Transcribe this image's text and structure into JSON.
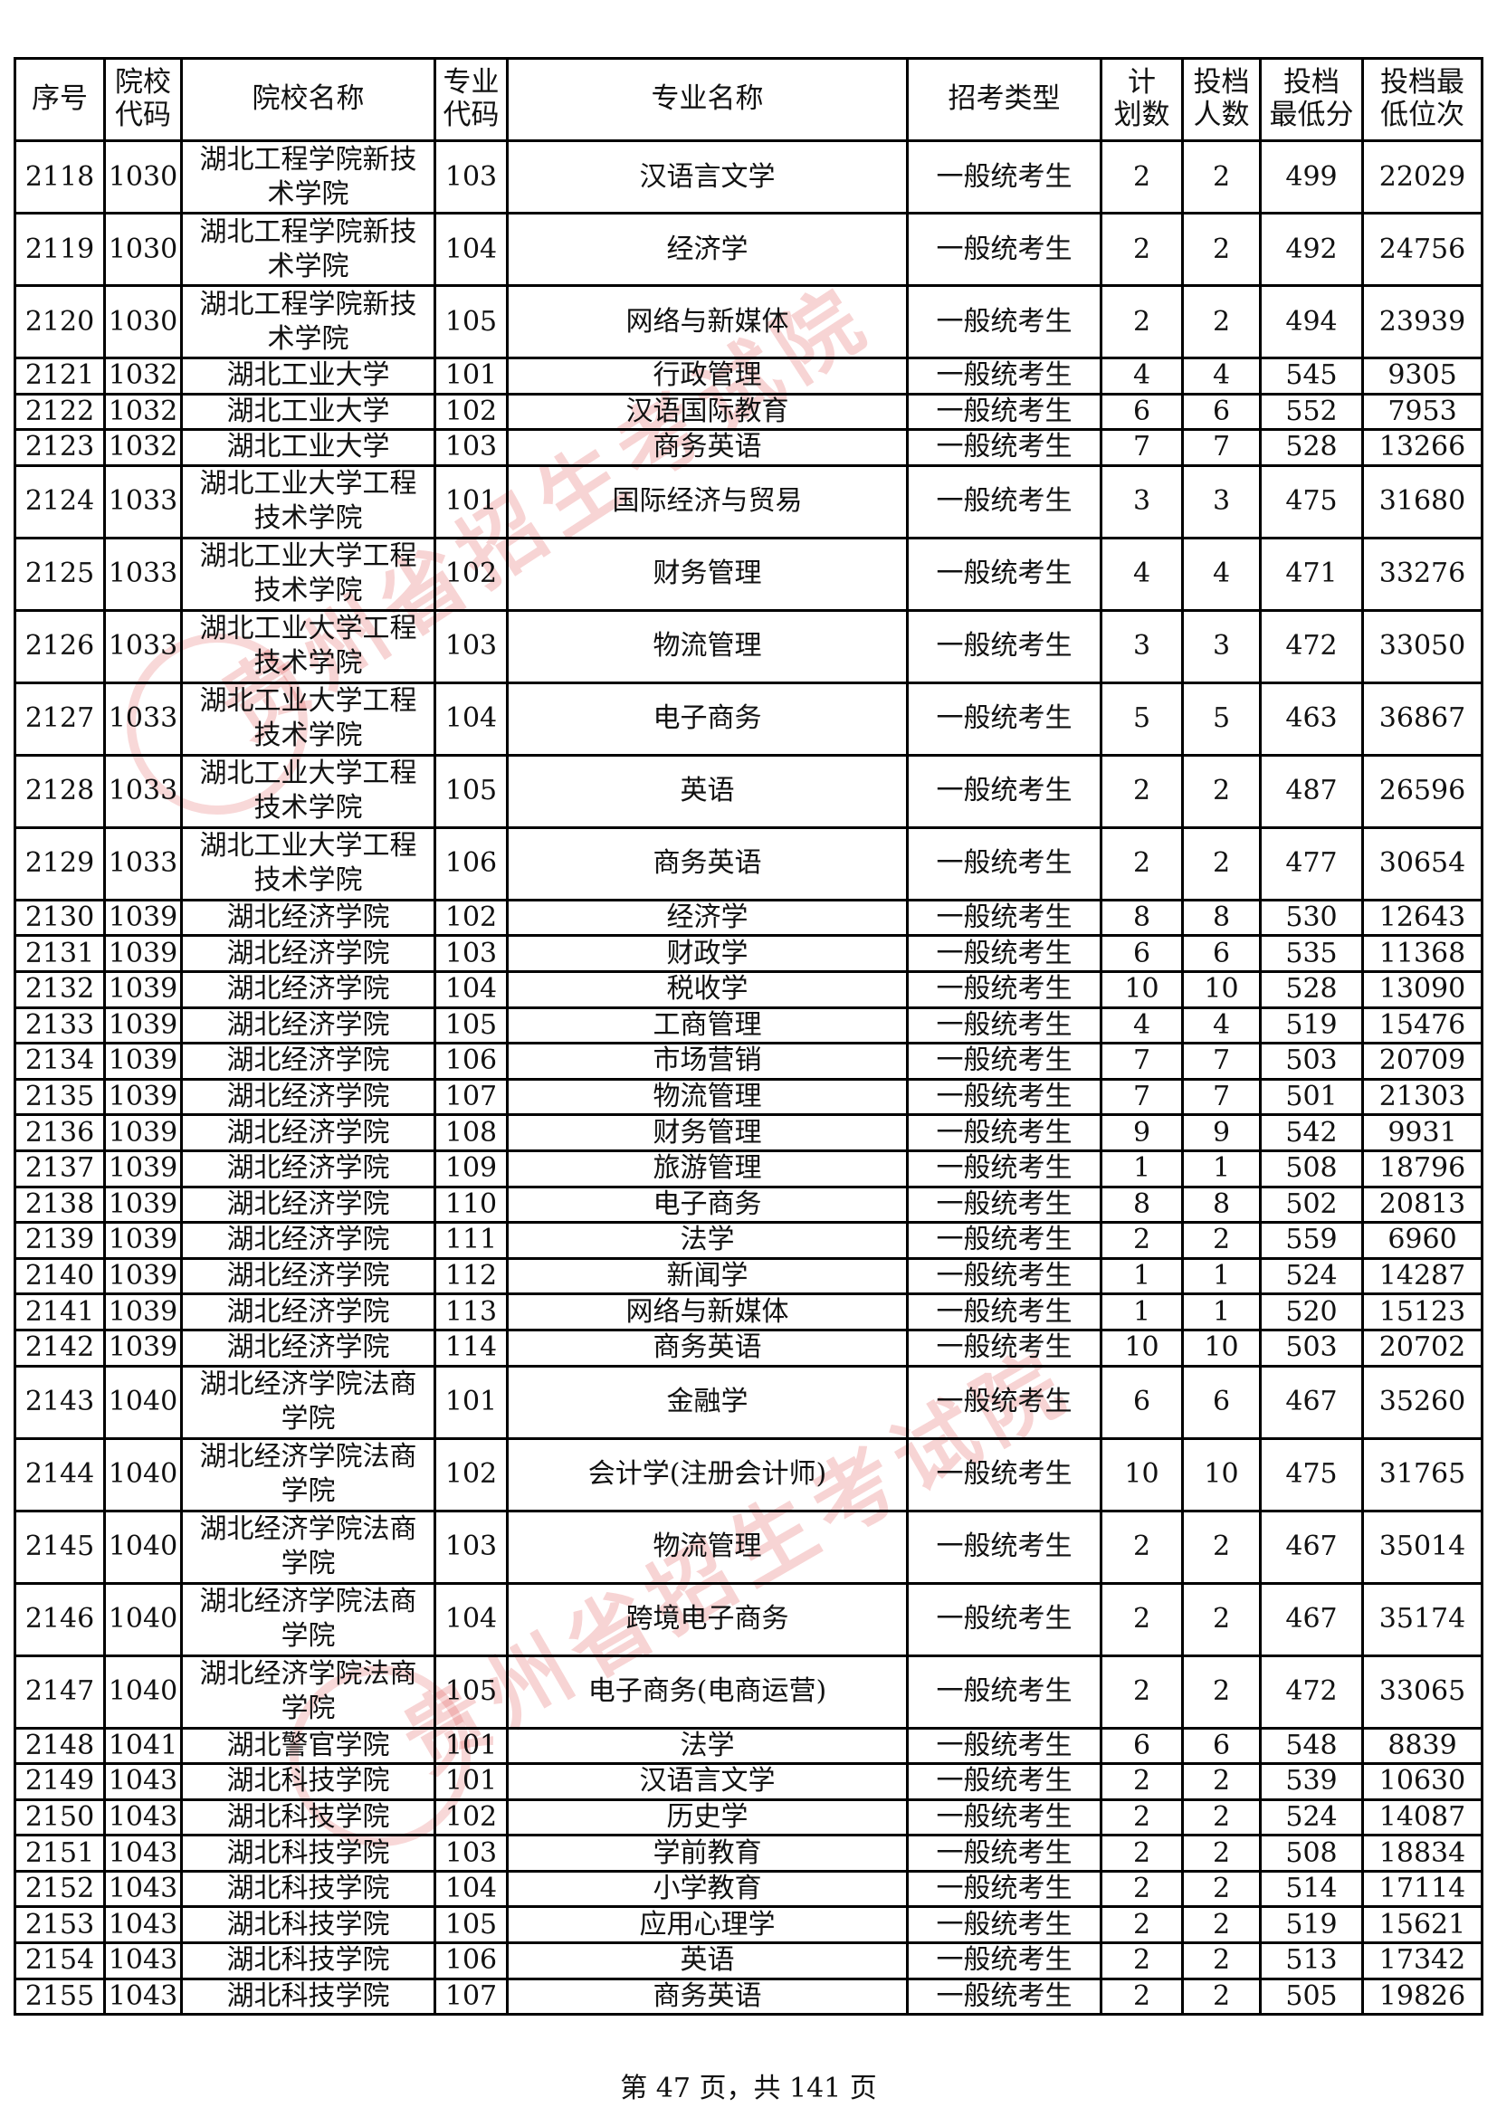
{
  "header": [
    "序号",
    "院校\n代码",
    "院校名称",
    "专业\n代码",
    "专业名称",
    "招考类型",
    "计\n划数",
    "投档\n人数",
    "投档\n最低分",
    "投档最\n低位次"
  ],
  "rows": [
    [
      "2118",
      "1030",
      "湖北工程学院新技术学院",
      "103",
      "汉语言文学",
      "一般统考生",
      "2",
      "2",
      "499",
      "22029"
    ],
    [
      "2119",
      "1030",
      "湖北工程学院新技术学院",
      "104",
      "经济学",
      "一般统考生",
      "2",
      "2",
      "492",
      "24756"
    ],
    [
      "2120",
      "1030",
      "湖北工程学院新技术学院",
      "105",
      "网络与新媒体",
      "一般统考生",
      "2",
      "2",
      "494",
      "23939"
    ],
    [
      "2121",
      "1032",
      "湖北工业大学",
      "101",
      "行政管理",
      "一般统考生",
      "4",
      "4",
      "545",
      "9305"
    ],
    [
      "2122",
      "1032",
      "湖北工业大学",
      "102",
      "汉语国际教育",
      "一般统考生",
      "6",
      "6",
      "552",
      "7953"
    ],
    [
      "2123",
      "1032",
      "湖北工业大学",
      "103",
      "商务英语",
      "一般统考生",
      "7",
      "7",
      "528",
      "13266"
    ],
    [
      "2124",
      "1033",
      "湖北工业大学工程技术学院",
      "101",
      "国际经济与贸易",
      "一般统考生",
      "3",
      "3",
      "475",
      "31680"
    ],
    [
      "2125",
      "1033",
      "湖北工业大学工程技术学院",
      "102",
      "财务管理",
      "一般统考生",
      "4",
      "4",
      "471",
      "33276"
    ],
    [
      "2126",
      "1033",
      "湖北工业大学工程技术学院",
      "103",
      "物流管理",
      "一般统考生",
      "3",
      "3",
      "472",
      "33050"
    ],
    [
      "2127",
      "1033",
      "湖北工业大学工程技术学院",
      "104",
      "电子商务",
      "一般统考生",
      "5",
      "5",
      "463",
      "36867"
    ],
    [
      "2128",
      "1033",
      "湖北工业大学工程技术学院",
      "105",
      "英语",
      "一般统考生",
      "2",
      "2",
      "487",
      "26596"
    ],
    [
      "2129",
      "1033",
      "湖北工业大学工程技术学院",
      "106",
      "商务英语",
      "一般统考生",
      "2",
      "2",
      "477",
      "30654"
    ],
    [
      "2130",
      "1039",
      "湖北经济学院",
      "102",
      "经济学",
      "一般统考生",
      "8",
      "8",
      "530",
      "12643"
    ],
    [
      "2131",
      "1039",
      "湖北经济学院",
      "103",
      "财政学",
      "一般统考生",
      "6",
      "6",
      "535",
      "11368"
    ],
    [
      "2132",
      "1039",
      "湖北经济学院",
      "104",
      "税收学",
      "一般统考生",
      "10",
      "10",
      "528",
      "13090"
    ],
    [
      "2133",
      "1039",
      "湖北经济学院",
      "105",
      "工商管理",
      "一般统考生",
      "4",
      "4",
      "519",
      "15476"
    ],
    [
      "2134",
      "1039",
      "湖北经济学院",
      "106",
      "市场营销",
      "一般统考生",
      "7",
      "7",
      "503",
      "20709"
    ],
    [
      "2135",
      "1039",
      "湖北经济学院",
      "107",
      "物流管理",
      "一般统考生",
      "7",
      "7",
      "501",
      "21303"
    ],
    [
      "2136",
      "1039",
      "湖北经济学院",
      "108",
      "财务管理",
      "一般统考生",
      "9",
      "9",
      "542",
      "9931"
    ],
    [
      "2137",
      "1039",
      "湖北经济学院",
      "109",
      "旅游管理",
      "一般统考生",
      "1",
      "1",
      "508",
      "18796"
    ],
    [
      "2138",
      "1039",
      "湖北经济学院",
      "110",
      "电子商务",
      "一般统考生",
      "8",
      "8",
      "502",
      "20813"
    ],
    [
      "2139",
      "1039",
      "湖北经济学院",
      "111",
      "法学",
      "一般统考生",
      "2",
      "2",
      "559",
      "6960"
    ],
    [
      "2140",
      "1039",
      "湖北经济学院",
      "112",
      "新闻学",
      "一般统考生",
      "1",
      "1",
      "524",
      "14287"
    ],
    [
      "2141",
      "1039",
      "湖北经济学院",
      "113",
      "网络与新媒体",
      "一般统考生",
      "1",
      "1",
      "520",
      "15123"
    ],
    [
      "2142",
      "1039",
      "湖北经济学院",
      "114",
      "商务英语",
      "一般统考生",
      "10",
      "10",
      "503",
      "20702"
    ],
    [
      "2143",
      "1040",
      "湖北经济学院法商学院",
      "101",
      "金融学",
      "一般统考生",
      "6",
      "6",
      "467",
      "35260"
    ],
    [
      "2144",
      "1040",
      "湖北经济学院法商学院",
      "102",
      "会计学(注册会计师)",
      "一般统考生",
      "10",
      "10",
      "475",
      "31765"
    ],
    [
      "2145",
      "1040",
      "湖北经济学院法商学院",
      "103",
      "物流管理",
      "一般统考生",
      "2",
      "2",
      "467",
      "35014"
    ],
    [
      "2146",
      "1040",
      "湖北经济学院法商学院",
      "104",
      "跨境电子商务",
      "一般统考生",
      "2",
      "2",
      "467",
      "35174"
    ],
    [
      "2147",
      "1040",
      "湖北经济学院法商学院",
      "105",
      "电子商务(电商运营)",
      "一般统考生",
      "2",
      "2",
      "472",
      "33065"
    ],
    [
      "2148",
      "1041",
      "湖北警官学院",
      "101",
      "法学",
      "一般统考生",
      "6",
      "6",
      "548",
      "8839"
    ],
    [
      "2149",
      "1043",
      "湖北科技学院",
      "101",
      "汉语言文学",
      "一般统考生",
      "2",
      "2",
      "539",
      "10630"
    ],
    [
      "2150",
      "1043",
      "湖北科技学院",
      "102",
      "历史学",
      "一般统考生",
      "2",
      "2",
      "524",
      "14087"
    ],
    [
      "2151",
      "1043",
      "湖北科技学院",
      "103",
      "学前教育",
      "一般统考生",
      "2",
      "2",
      "508",
      "18834"
    ],
    [
      "2152",
      "1043",
      "湖北科技学院",
      "104",
      "小学教育",
      "一般统考生",
      "2",
      "2",
      "514",
      "17114"
    ],
    [
      "2153",
      "1043",
      "湖北科技学院",
      "105",
      "应用心理学",
      "一般统考生",
      "2",
      "2",
      "519",
      "15621"
    ],
    [
      "2154",
      "1043",
      "湖北科技学院",
      "106",
      "英语",
      "一般统考生",
      "2",
      "2",
      "513",
      "17342"
    ],
    [
      "2155",
      "1043",
      "湖北科技学院",
      "107",
      "商务英语",
      "一般统考生",
      "2",
      "2",
      "505",
      "19826"
    ]
  ],
  "watermark": "贵州省招生考试院",
  "watermark_color": "#dc3c3c",
  "footer": "第 47 页，共 141 页"
}
